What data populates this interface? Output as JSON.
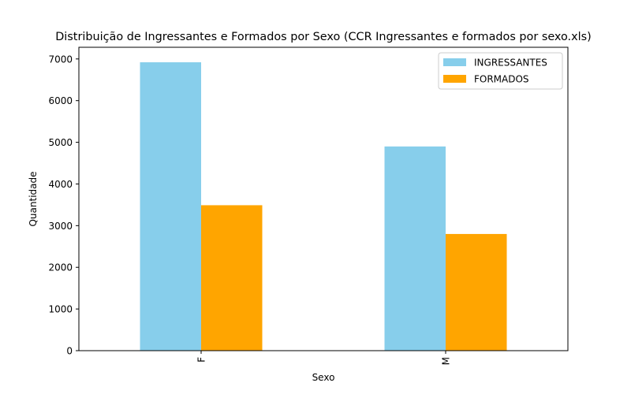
{
  "chart_data": {
    "type": "bar",
    "title": "Distribuição de Ingressantes e Formados por Sexo (CCR Ingressantes e formados por sexo.xls)",
    "xlabel": "Sexo",
    "ylabel": "Quantidade",
    "categories": [
      "F",
      "M"
    ],
    "series": [
      {
        "name": "INGRESSANTES",
        "color": "#87ceeb",
        "values": [
          6920,
          4900
        ]
      },
      {
        "name": "FORMADOS",
        "color": "#ffa500",
        "values": [
          3490,
          2800
        ]
      }
    ],
    "ylim": [
      0,
      7280
    ],
    "yticks": [
      0,
      1000,
      2000,
      3000,
      4000,
      5000,
      6000,
      7000
    ],
    "grid": false,
    "legend_position": "top-right",
    "xtick_rotation": "vertical"
  }
}
